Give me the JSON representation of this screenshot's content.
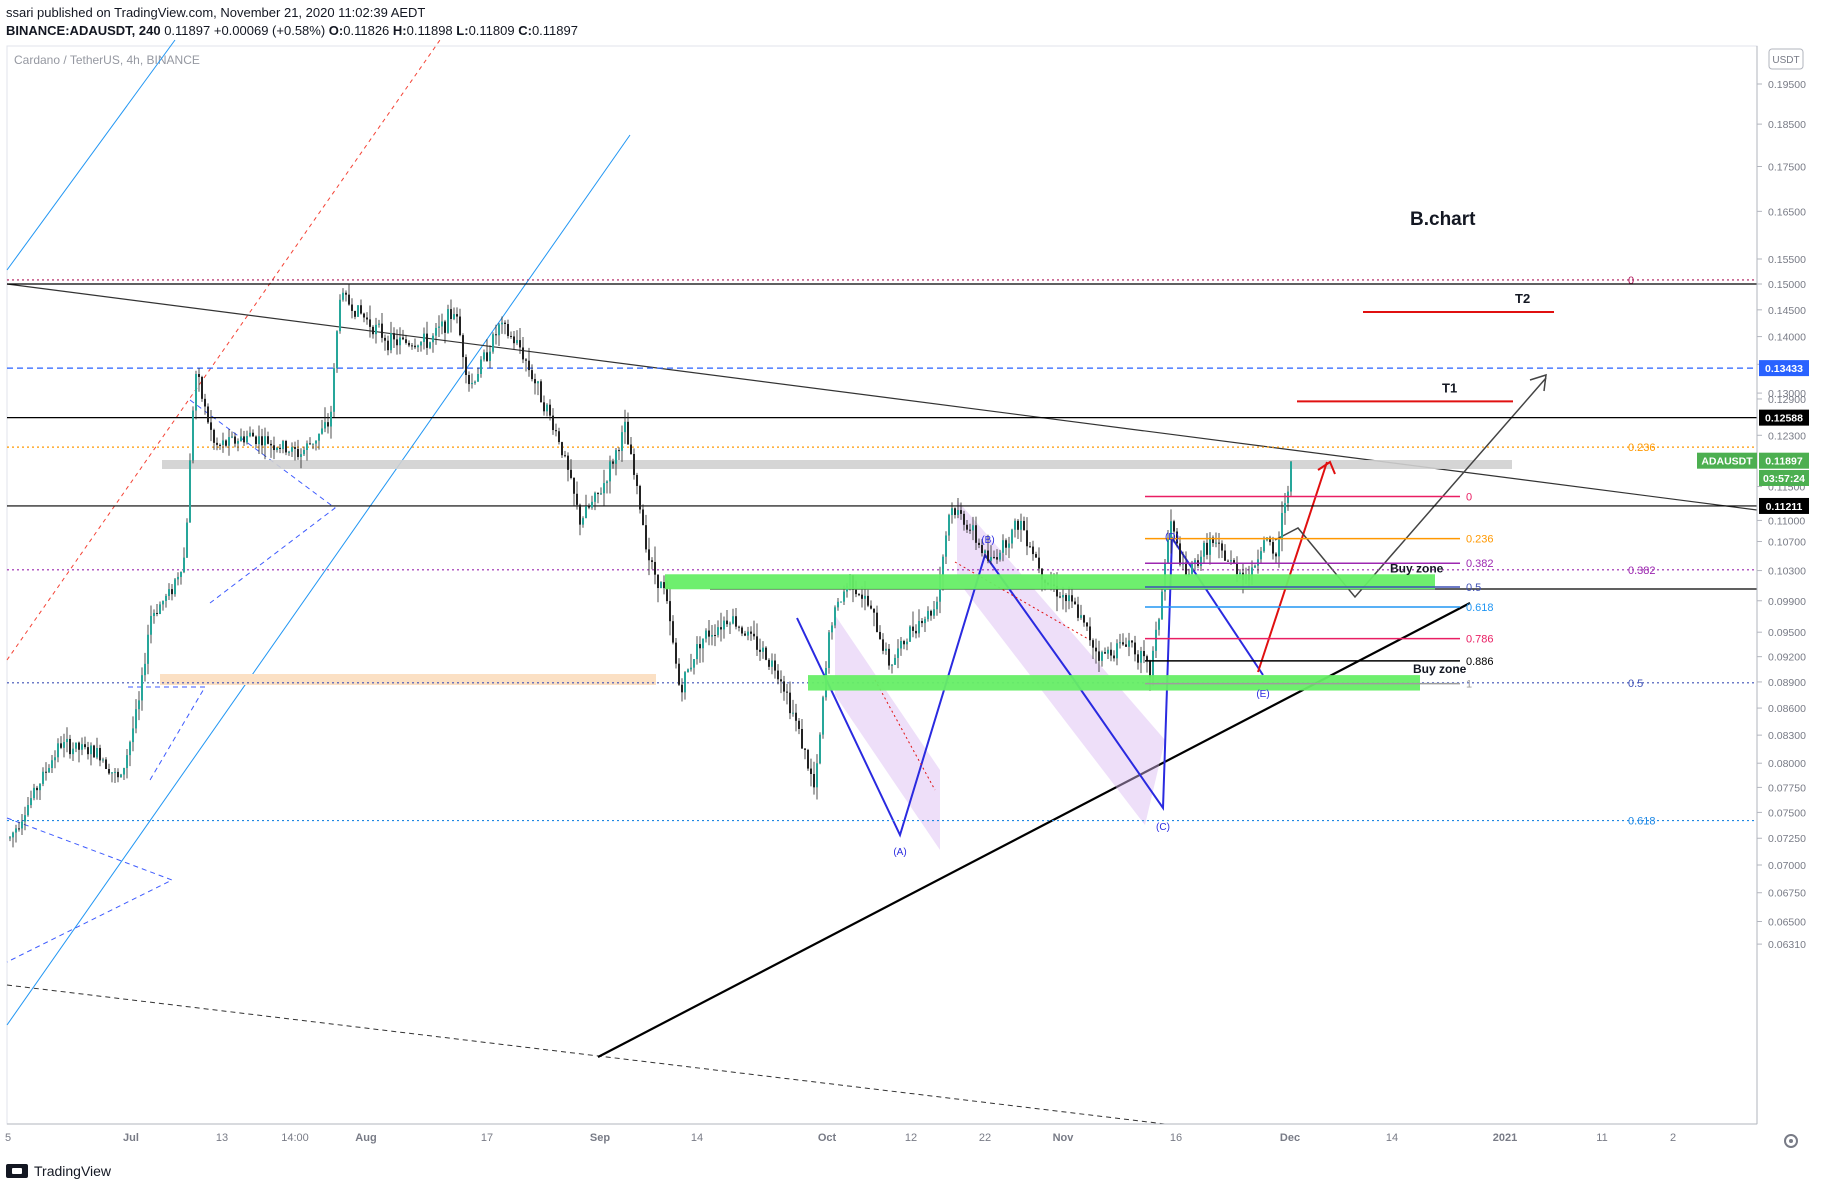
{
  "header": {
    "line1": "ssari published on TradingView.com, November 21, 2020 11:02:39 AEDT",
    "symbol": "BINANCE:ADAUSDT, 240",
    "price": "0.11897",
    "change": "+0.00069 (+0.58%)",
    "o_label": "O:",
    "o": "0.11826",
    "h_label": "H:",
    "h": "0.11898",
    "l_label": "L:",
    "l": "0.11809",
    "c_label": "C:",
    "c": "0.11897"
  },
  "footer": {
    "brand": "TradingView"
  },
  "chart_data": {
    "type": "line",
    "subtitle": "Cardano / TetherUS, 4h, BINANCE",
    "currency_badge": "USDT",
    "title": "B.chart",
    "price_scale": "log",
    "ylim": [
      0.062,
      0.207
    ],
    "y_ticks": [
      "0.19500",
      "0.18500",
      "0.17500",
      "0.16500",
      "0.15500",
      "0.15000",
      "0.14500",
      "0.14000",
      "0.13500",
      "0.13000",
      "0.12900",
      "0.12300",
      "0.11500",
      "0.11000",
      "0.10700",
      "0.10300",
      "0.09900",
      "0.09500",
      "0.09200",
      "0.08900",
      "0.08600",
      "0.08300",
      "0.08000",
      "0.07750",
      "0.07500",
      "0.07250",
      "0.07000",
      "0.06750",
      "0.06500",
      "0.06310"
    ],
    "x_ticks": [
      "5",
      "Jul",
      "13",
      "14:00",
      "Aug",
      "17",
      "Sep",
      "14",
      "Oct",
      "12",
      "22",
      "Nov",
      "16",
      "Dec",
      "14",
      "2021",
      "11",
      "2"
    ],
    "price_labels": [
      {
        "text": "0.13433",
        "price": 0.13433,
        "color": "#2962ff"
      },
      {
        "text": "0.12588",
        "price": 0.12588,
        "color": "#000000"
      },
      {
        "text": "ADAUSDT",
        "price": 0.11897,
        "color": "#4caf50"
      },
      {
        "text": "0.11897",
        "price": 0.11897,
        "color": "#4caf50"
      },
      {
        "text": "03:57:24",
        "price": 0.1163,
        "color": "#4caf50"
      },
      {
        "text": "0.11211",
        "price": 0.11211,
        "color": "#000000"
      }
    ],
    "horizontal_levels": [
      {
        "price": 0.1508,
        "color": "#b0185a",
        "style": "dotted",
        "label": "0"
      },
      {
        "price": 0.15,
        "color": "#000000",
        "style": "solid"
      },
      {
        "price": 0.13433,
        "color": "#2962ff",
        "style": "dashed"
      },
      {
        "price": 0.12588,
        "color": "#000000",
        "style": "solid"
      },
      {
        "price": 0.1211,
        "color": "#ff9800",
        "style": "dotted",
        "label": "0.236"
      },
      {
        "price": 0.11211,
        "color": "#000000",
        "style": "solid"
      },
      {
        "price": 0.1031,
        "color": "#9c27b0",
        "style": "dotted",
        "label": "0.382"
      },
      {
        "price": 0.0889,
        "color": "#3f51b5",
        "style": "dotted",
        "label": "0.5"
      },
      {
        "price": 0.0742,
        "color": "#1e88e5",
        "style": "dotted",
        "label": "0.618"
      }
    ],
    "fib_levels": [
      {
        "label": "0",
        "price": 0.1135,
        "color": "#e91e63"
      },
      {
        "label": "0.236",
        "price": 0.1074,
        "color": "#ff9800"
      },
      {
        "label": "0.382",
        "price": 0.104,
        "color": "#9c27b0"
      },
      {
        "label": "0.5",
        "price": 0.1008,
        "color": "#3f51b5"
      },
      {
        "label": "0.618",
        "price": 0.0982,
        "color": "#2196f3"
      },
      {
        "label": "0.786",
        "price": 0.0942,
        "color": "#e91e63"
      },
      {
        "label": "0.886",
        "price": 0.0915,
        "color": "#000000"
      },
      {
        "label": "1",
        "price": 0.0888,
        "color": "#9e9e9e"
      }
    ],
    "zones": [
      {
        "label": "Buy zone",
        "top": 0.1025,
        "bottom": 0.1005,
        "color": "#66ee66"
      },
      {
        "label": "Buy zone",
        "top": 0.0898,
        "bottom": 0.088,
        "color": "#66ee66"
      }
    ],
    "wave_labels": [
      "(A)",
      "(B)",
      "(C)",
      "(D)",
      "(E)"
    ],
    "targets": [
      {
        "label": "T1",
        "price": 0.1286
      },
      {
        "label": "T2",
        "price": 0.1446
      }
    ]
  }
}
